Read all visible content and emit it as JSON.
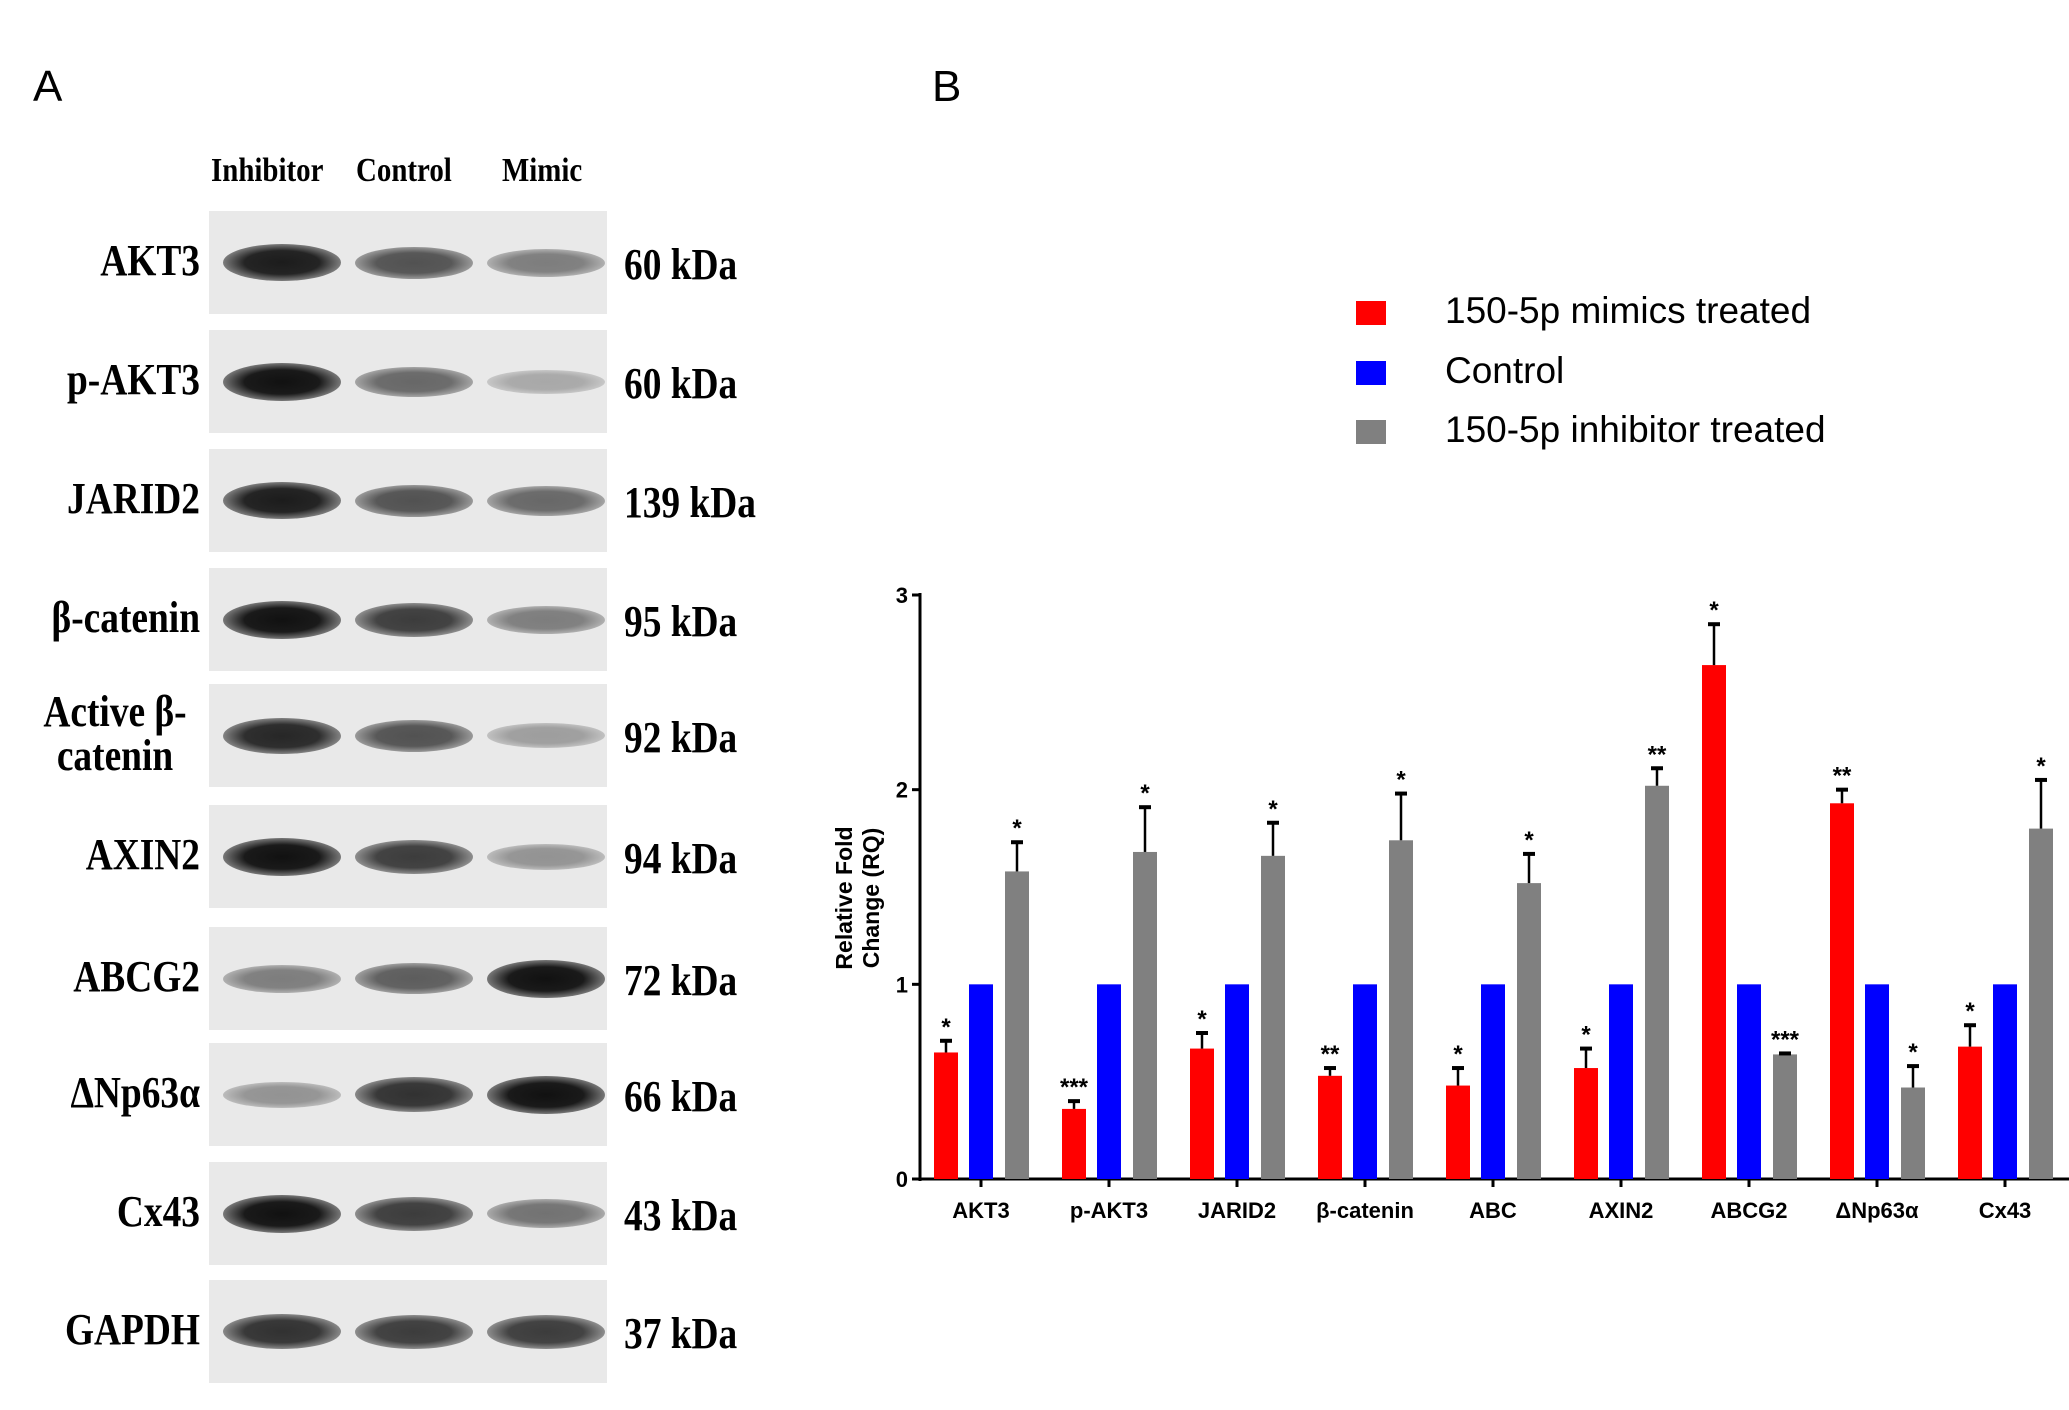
{
  "panels": {
    "a": "A",
    "b": "B"
  },
  "blot": {
    "columns": [
      "Inhibitor",
      "Control",
      "Mimic"
    ],
    "rows": [
      {
        "label": "AKT3",
        "kda": "60 kDa",
        "intensity": [
          0.95,
          0.7,
          0.5
        ]
      },
      {
        "label": "p-AKT3",
        "kda": "60 kDa",
        "intensity": [
          1.0,
          0.6,
          0.3
        ]
      },
      {
        "label": "JARID2",
        "kda": "139 kDa",
        "intensity": [
          0.95,
          0.7,
          0.6
        ]
      },
      {
        "label": "β-catenin",
        "kda": "95 kDa",
        "intensity": [
          1.0,
          0.8,
          0.5
        ]
      },
      {
        "label": "Active β-catenin",
        "kda": "92 kDa",
        "intensity": [
          0.9,
          0.7,
          0.35
        ]
      },
      {
        "label": "AXIN2",
        "kda": "94 kDa",
        "intensity": [
          1.0,
          0.8,
          0.4
        ]
      },
      {
        "label": "ABCG2",
        "kda": "72 kDa",
        "intensity": [
          0.5,
          0.65,
          1.0
        ]
      },
      {
        "label": "ΔNp63α",
        "kda": "66 kDa",
        "intensity": [
          0.4,
          0.85,
          1.0
        ]
      },
      {
        "label": "Cx43",
        "kda": "43 kDa",
        "intensity": [
          1.0,
          0.8,
          0.55
        ]
      },
      {
        "label": "GAPDH",
        "kda": "37 kDa",
        "intensity": [
          0.85,
          0.8,
          0.8
        ]
      }
    ]
  },
  "chart_data": {
    "type": "bar",
    "title": "",
    "xlabel": "",
    "ylabel": "Relative Fold Change (RQ)",
    "ylabel_lines": [
      "Relative Fold",
      "Change (RQ)"
    ],
    "ylim": [
      0,
      3
    ],
    "yticks": [
      "0",
      "1",
      "2",
      "3"
    ],
    "categories": [
      "AKT3",
      "p-AKT3",
      "JARID2",
      "β-catenin",
      "ABC",
      "AXIN2",
      "ABCG2",
      "ΔNp63α",
      "Cx43"
    ],
    "legend_position": "top-right",
    "series": [
      {
        "name": "150-5p mimics treated",
        "color": "#ff0000",
        "values": [
          0.65,
          0.36,
          0.67,
          0.53,
          0.48,
          0.57,
          2.64,
          1.93,
          0.68
        ],
        "error_top": [
          0.71,
          0.4,
          0.75,
          0.57,
          0.57,
          0.67,
          2.85,
          2.0,
          0.79
        ],
        "significance": [
          "*",
          "***",
          "*",
          "**",
          "*",
          "*",
          "*",
          "**",
          "*"
        ]
      },
      {
        "name": "Control",
        "color": "#0000ff",
        "values": [
          1,
          1,
          1,
          1,
          1,
          1,
          1,
          1,
          1
        ],
        "error_top": [
          null,
          null,
          null,
          null,
          null,
          null,
          null,
          null,
          null
        ],
        "significance": [
          "",
          "",
          "",
          "",
          "",
          "",
          "",
          "",
          ""
        ]
      },
      {
        "name": "150-5p inhibitor treated",
        "color": "#808080",
        "values": [
          1.58,
          1.68,
          1.66,
          1.74,
          1.52,
          2.02,
          0.64,
          0.47,
          1.8
        ],
        "error_top": [
          1.73,
          1.91,
          1.83,
          1.98,
          1.67,
          2.11,
          0.645,
          0.58,
          2.05
        ],
        "significance": [
          "*",
          "*",
          "*",
          "*",
          "*",
          "**",
          "***",
          "*",
          "*"
        ]
      }
    ]
  }
}
